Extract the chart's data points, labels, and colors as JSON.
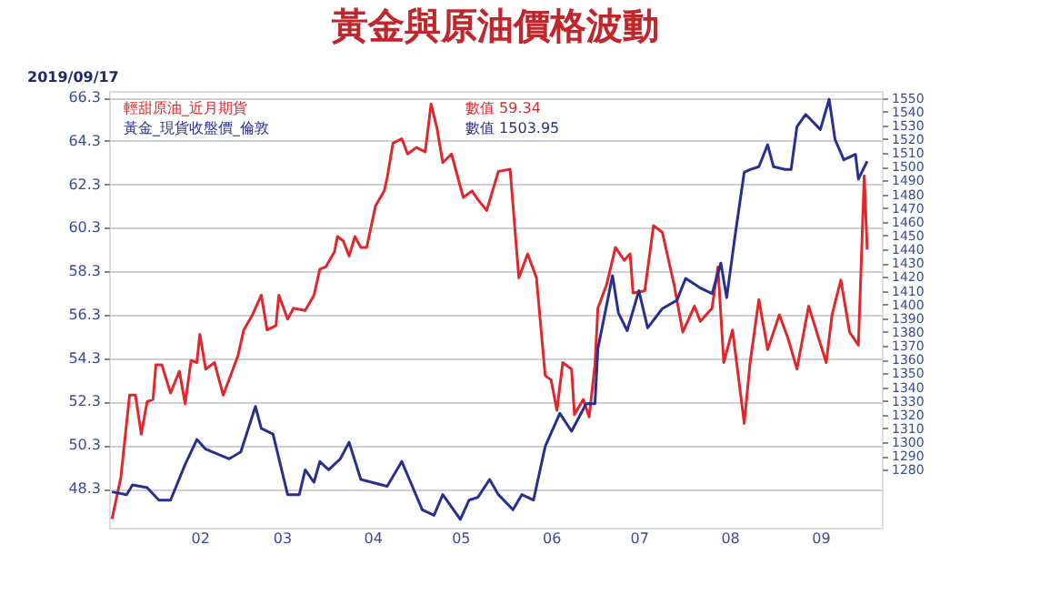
{
  "chart_data": {
    "type": "line",
    "title": "黃金與原油價格波動",
    "annotations": [
      "2019/09/17",
      "數值 59.34",
      "數值 1503.95"
    ],
    "series": [
      {
        "name": "輕甜原油_近月期貨",
        "color": "#e3262b",
        "axis": "y",
        "x": [
          "2019-01-02",
          "2019-01-05",
          "2019-01-08",
          "2019-01-10",
          "2019-01-12",
          "2019-01-14",
          "2019-01-16",
          "2019-01-17",
          "2019-01-19",
          "2019-01-22",
          "2019-01-25",
          "2019-01-27",
          "2019-01-29",
          "2019-01-31",
          "2019-02-01",
          "2019-02-03",
          "2019-02-06",
          "2019-02-09",
          "2019-02-14",
          "2019-02-16",
          "2019-02-19",
          "2019-02-22",
          "2019-02-24",
          "2019-02-27",
          "2019-02-28",
          "2019-03-03",
          "2019-03-05",
          "2019-03-09",
          "2019-03-12",
          "2019-03-14",
          "2019-03-16",
          "2019-03-19",
          "2019-03-20",
          "2019-03-22",
          "2019-03-24",
          "2019-03-26",
          "2019-03-28",
          "2019-03-30",
          "2019-04-02",
          "2019-04-05",
          "2019-04-06",
          "2019-04-08",
          "2019-04-11",
          "2019-04-13",
          "2019-04-16",
          "2019-04-19",
          "2019-04-21",
          "2019-04-23",
          "2019-04-25",
          "2019-04-28",
          "2019-05-02",
          "2019-05-05",
          "2019-05-07",
          "2019-05-10",
          "2019-05-14",
          "2019-05-18",
          "2019-05-21",
          "2019-05-24",
          "2019-05-27",
          "2019-05-30",
          "2019-06-01",
          "2019-06-03",
          "2019-06-05",
          "2019-06-08",
          "2019-06-09",
          "2019-06-12",
          "2019-06-14",
          "2019-06-16",
          "2019-06-17",
          "2019-06-20",
          "2019-06-23",
          "2019-06-26",
          "2019-06-28",
          "2019-06-29",
          "2019-07-03",
          "2019-07-06",
          "2019-07-09",
          "2019-07-13",
          "2019-07-16",
          "2019-07-20",
          "2019-07-22",
          "2019-07-26",
          "2019-07-28",
          "2019-07-30",
          "2019-08-02",
          "2019-08-06",
          "2019-08-08",
          "2019-08-11",
          "2019-08-14",
          "2019-08-18",
          "2019-08-21",
          "2019-08-24",
          "2019-08-28",
          "2019-09-03",
          "2019-09-05",
          "2019-09-08",
          "2019-09-11",
          "2019-09-14",
          "2019-09-16",
          "2019-09-17"
        ],
        "values": [
          46.9,
          48.8,
          52.6,
          52.6,
          50.8,
          52.3,
          52.4,
          54.0,
          54.0,
          52.7,
          53.7,
          52.2,
          54.2,
          54.1,
          55.4,
          53.8,
          54.1,
          52.6,
          54.4,
          55.6,
          56.3,
          57.2,
          55.6,
          55.8,
          57.2,
          56.1,
          56.6,
          56.5,
          57.2,
          58.4,
          58.5,
          59.2,
          59.9,
          59.7,
          59.0,
          59.9,
          59.4,
          59.4,
          61.3,
          62.0,
          62.6,
          64.2,
          64.4,
          63.7,
          64.0,
          63.8,
          66.0,
          64.9,
          63.3,
          63.7,
          61.7,
          62.0,
          61.6,
          61.1,
          62.9,
          63.0,
          58.0,
          59.1,
          58.0,
          53.5,
          53.3,
          51.9,
          54.1,
          53.8,
          51.7,
          52.4,
          51.6,
          54.0,
          56.6,
          57.7,
          59.4,
          58.8,
          59.1,
          57.3,
          57.4,
          60.4,
          60.1,
          57.7,
          55.5,
          56.7,
          56.0,
          56.6,
          58.5,
          54.1,
          55.6,
          51.3,
          54.1,
          57.0,
          54.7,
          56.3,
          55.2,
          53.8,
          56.7,
          54.1,
          56.3,
          57.9,
          55.5,
          54.9,
          62.7,
          59.3
        ]
      },
      {
        "name": "黃金_現貨收盤價_倫敦",
        "color": "#28308f",
        "axis": "y2",
        "x": [
          "2019-01-02",
          "2019-01-07",
          "2019-01-09",
          "2019-01-14",
          "2019-01-18",
          "2019-01-22",
          "2019-01-27",
          "2019-01-31",
          "2019-02-03",
          "2019-02-11",
          "2019-02-15",
          "2019-02-20",
          "2019-02-22",
          "2019-02-26",
          "2019-03-03",
          "2019-03-07",
          "2019-03-09",
          "2019-03-12",
          "2019-03-14",
          "2019-03-17",
          "2019-03-21",
          "2019-03-24",
          "2019-03-28",
          "2019-04-06",
          "2019-04-11",
          "2019-04-14",
          "2019-04-18",
          "2019-04-22",
          "2019-04-25",
          "2019-05-01",
          "2019-05-04",
          "2019-05-07",
          "2019-05-11",
          "2019-05-14",
          "2019-05-19",
          "2019-05-22",
          "2019-05-26",
          "2019-05-30",
          "2019-06-04",
          "2019-06-08",
          "2019-06-13",
          "2019-06-16",
          "2019-06-17",
          "2019-06-22",
          "2019-06-24",
          "2019-06-27",
          "2019-07-01",
          "2019-07-04",
          "2019-07-09",
          "2019-07-14",
          "2019-07-17",
          "2019-07-22",
          "2019-07-26",
          "2019-07-29",
          "2019-07-31",
          "2019-08-03",
          "2019-08-06",
          "2019-08-08",
          "2019-08-11",
          "2019-08-14",
          "2019-08-16",
          "2019-08-20",
          "2019-08-22",
          "2019-08-24",
          "2019-08-27",
          "2019-09-01",
          "2019-09-04",
          "2019-09-06",
          "2019-09-09",
          "2019-09-13",
          "2019-09-14",
          "2019-09-17"
        ],
        "values": [
          1264,
          1262,
          1269,
          1267,
          1258,
          1258,
          1284,
          1302,
          1295,
          1288,
          1293,
          1326,
          1310,
          1306,
          1262,
          1262,
          1280,
          1271,
          1286,
          1280,
          1288,
          1300,
          1273,
          1268,
          1286,
          1271,
          1251,
          1247,
          1262,
          1244,
          1258,
          1260,
          1273,
          1262,
          1251,
          1262,
          1258,
          1297,
          1321,
          1308,
          1328,
          1328,
          1368,
          1421,
          1394,
          1381,
          1410,
          1383,
          1397,
          1403,
          1419,
          1412,
          1408,
          1430,
          1405,
          1452,
          1496,
          1498,
          1500,
          1516,
          1500,
          1498,
          1498,
          1529,
          1538,
          1527,
          1549,
          1520,
          1505,
          1509,
          1491,
          1504
        ]
      }
    ],
    "xlim": [
      "2019-01-01",
      "2019-09-22"
    ],
    "xticks": [
      {
        "value": "2019-02-01",
        "label": "02"
      },
      {
        "value": "2019-03-01",
        "label": "03"
      },
      {
        "value": "2019-04-01",
        "label": "04"
      },
      {
        "value": "2019-05-01",
        "label": "05"
      },
      {
        "value": "2019-06-01",
        "label": "06"
      },
      {
        "value": "2019-07-01",
        "label": "07"
      },
      {
        "value": "2019-08-01",
        "label": "08"
      },
      {
        "value": "2019-09-01",
        "label": "09"
      }
    ],
    "ylim": [
      46.5,
      66.6
    ],
    "yticks": [
      48.3,
      50.3,
      52.3,
      54.3,
      56.3,
      58.3,
      60.3,
      62.3,
      64.3,
      66.3
    ],
    "y2lim": [
      1238,
      1555
    ],
    "y2ticks": [
      1280,
      1290,
      1300,
      1310,
      1320,
      1330,
      1340,
      1350,
      1360,
      1370,
      1380,
      1390,
      1400,
      1410,
      1420,
      1430,
      1440,
      1450,
      1460,
      1470,
      1480,
      1490,
      1500,
      1510,
      1520,
      1530,
      1540,
      1550
    ],
    "grid": "y",
    "legend": "top left",
    "line_style": "solid",
    "marker": "none"
  }
}
